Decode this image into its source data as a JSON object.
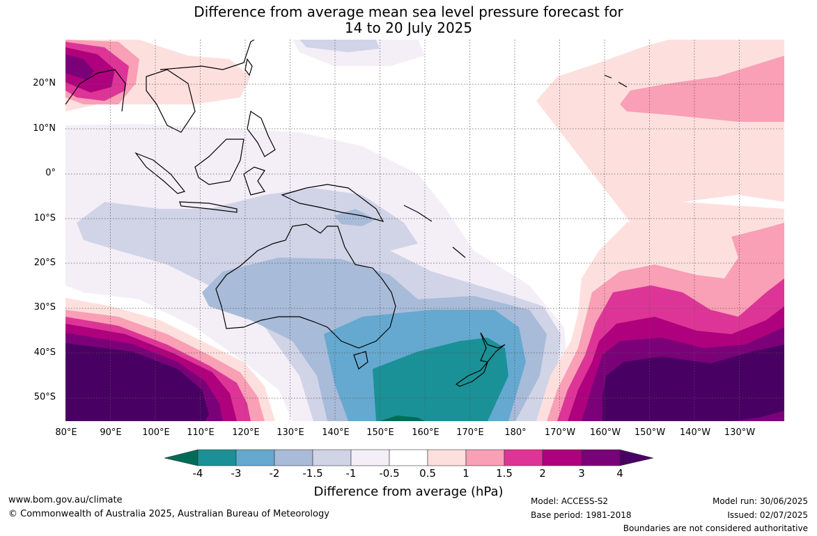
{
  "title_line1": "Difference from average mean sea level pressure forecast for",
  "title_line2": "14 to 20 July 2025",
  "lat_labels": [
    "20°N",
    "10°N",
    "0°",
    "10°S",
    "20°S",
    "30°S",
    "40°S",
    "50°S"
  ],
  "lon_labels": [
    "80°E",
    "90°E",
    "100°E",
    "110°E",
    "120°E",
    "130°E",
    "140°E",
    "150°E",
    "160°E",
    "170°E",
    "180°",
    "170°W",
    "160°W",
    "150°W",
    "140°W",
    "130°W"
  ],
  "colorbar": {
    "labels": [
      "-4",
      "-3",
      "-2",
      "-1.5",
      "-1",
      "-0.5",
      "0.5",
      "1",
      "1.5",
      "2",
      "3",
      "4"
    ],
    "colors": {
      "lt_-4": "#006b56",
      "-4_-3": "#1a9196",
      "-3_-2": "#65a9d0",
      "-2_-1.5": "#a8bbd9",
      "-1.5_-1": "#d1d4e7",
      "-1_-0.5": "#f4eef7",
      "-0.5_0.5": "#ffffff",
      "0.5_1": "#fde0de",
      "1_1.5": "#f99fb6",
      "1.5_2": "#dd3597",
      "2_3": "#af017d",
      "3_4": "#7b0179",
      "gt_4": "#490063"
    },
    "title": "Difference from average (hPa)"
  },
  "footer": {
    "url": "www.bom.gov.au/climate",
    "copyright": "© Commonwealth of Australia 2025, Australian Bureau of Meteorology",
    "model": "Model: ACCESS-S2",
    "base_period": "Base period: 1981-2018",
    "model_run": "Model run: 30/06/2025",
    "issued": "Issued: 02/07/2025",
    "disclaimer": "Boundaries are not considered authoritative"
  }
}
